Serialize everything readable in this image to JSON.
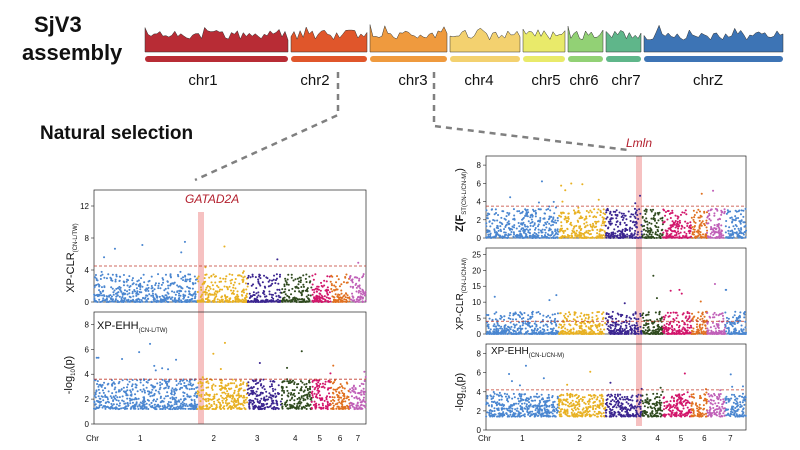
{
  "assembly": {
    "line1": "SjV3",
    "line2": "assembly"
  },
  "chromosomes": [
    {
      "name": "chr1",
      "color": "#b82c35"
    },
    {
      "name": "chr2",
      "color": "#e0562b"
    },
    {
      "name": "chr3",
      "color": "#ef9a3e"
    },
    {
      "name": "chr4",
      "color": "#f3d16f"
    },
    {
      "name": "chr5",
      "color": "#e9ea6a"
    },
    {
      "name": "chr6",
      "color": "#92d175"
    },
    {
      "name": "chr7",
      "color": "#5fb68a"
    },
    {
      "name": "chrZ",
      "color": "#3d74b5"
    }
  ],
  "section_title": "Natural selection",
  "left_panel": {
    "highlight_gene": "GATAD2A",
    "top_plot": {
      "ylabel": "XP-CLR",
      "ylabel_sub": "(CN-L/TW)",
      "yticks": [
        "0",
        "4",
        "8",
        "12"
      ],
      "ylim": [
        0,
        14
      ]
    },
    "bottom_plot": {
      "label": "XP-EHH",
      "label_sub": "(CN-L/TW)",
      "ylabel": "-log",
      "ylabel_sub": "10",
      "ylabel_tail": "(p)",
      "yticks": [
        "0",
        "2",
        "4",
        "6",
        "8"
      ],
      "ylim": [
        0,
        9
      ]
    },
    "x_prefix": "Chr",
    "x_labels": [
      "1",
      "2",
      "3",
      "4",
      "5",
      "6",
      "7"
    ]
  },
  "right_panel": {
    "highlight_gene": "Lmln",
    "top_plot": {
      "ylabel": "Z(F",
      "ylabel_sub": "ST(CN-L/CN-M)",
      "ylabel_tail": ")",
      "yticks": [
        "0",
        "2",
        "4",
        "6",
        "8"
      ],
      "ylim": [
        0,
        9
      ]
    },
    "mid_plot": {
      "ylabel": "XP-CLR",
      "ylabel_sub": "(CN-L/CN-M)",
      "yticks": [
        "0",
        "5",
        "10",
        "15",
        "20",
        "25"
      ],
      "ylim": [
        0,
        27
      ]
    },
    "bottom_plot": {
      "label": "XP-EHH",
      "label_sub": "(CN-L/CN-M)",
      "ylabel": "-log",
      "ylabel_sub": "10",
      "ylabel_tail": "(p)",
      "yticks": [
        "0",
        "2",
        "4",
        "6",
        "8"
      ],
      "ylim": [
        0,
        9
      ]
    },
    "x_prefix": "Chr",
    "x_labels": [
      "1",
      "2",
      "3",
      "4",
      "5",
      "6",
      "7"
    ]
  },
  "manhattan_colors": [
    "#4a86d0",
    "#e8b123",
    "#3b2590",
    "#2f4a1e",
    "#d2166b",
    "#e07020",
    "#c060b8"
  ]
}
